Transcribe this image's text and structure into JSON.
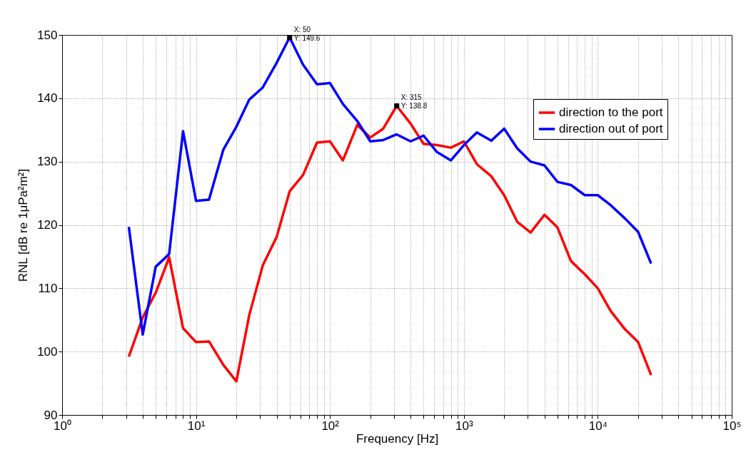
{
  "chart_data": {
    "type": "line",
    "xlabel": "Frequency [Hz]",
    "ylabel": "RNL [dB re 1μPa²m²]",
    "x": [
      3.15,
      4,
      5,
      6.3,
      8,
      10,
      12.5,
      16,
      20,
      25,
      31.5,
      40,
      50,
      63,
      80,
      100,
      125,
      160,
      200,
      250,
      315,
      400,
      500,
      630,
      800,
      1000,
      1250,
      1600,
      2000,
      2500,
      3150,
      4000,
      5000,
      6300,
      8000,
      10000,
      12500,
      16000,
      20000,
      25000
    ],
    "series": [
      {
        "name": "direction to the port",
        "color": "#ff0000",
        "values": [
          99.2,
          105.4,
          109.3,
          114.9,
          103.7,
          101.5,
          101.6,
          97.9,
          95.3,
          105.8,
          113.6,
          118.1,
          125.3,
          127.9,
          133.0,
          133.2,
          130.2,
          135.8,
          133.8,
          135.2,
          138.8,
          136.0,
          132.8,
          132.6,
          132.2,
          133.2,
          129.6,
          127.7,
          124.7,
          120.5,
          118.8,
          121.6,
          119.6,
          114.3,
          112.2,
          110.0,
          106.4,
          103.5,
          101.5,
          96.3
        ]
      },
      {
        "name": "direction out of port",
        "color": "#0000ff",
        "values": [
          119.7,
          102.7,
          113.4,
          115.4,
          134.8,
          123.8,
          124.0,
          131.9,
          135.5,
          139.8,
          141.7,
          145.6,
          149.6,
          145.3,
          142.2,
          142.4,
          139.1,
          136.4,
          133.2,
          133.4,
          134.3,
          133.2,
          134.1,
          131.5,
          130.2,
          132.6,
          134.6,
          133.3,
          135.2,
          132.1,
          130.0,
          129.4,
          126.8,
          126.3,
          124.7,
          124.7,
          123.1,
          121.0,
          118.9,
          113.9
        ]
      }
    ],
    "log": "x",
    "xlim": [
      1,
      100000
    ],
    "xticks": [
      {
        "value": 1,
        "label": "10⁰"
      },
      {
        "value": 2,
        "label": null
      },
      {
        "value": 3,
        "label": null
      },
      {
        "value": 4,
        "label": null
      },
      {
        "value": 5,
        "label": null
      },
      {
        "value": 6,
        "label": null
      },
      {
        "value": 7,
        "label": null
      },
      {
        "value": 8,
        "label": null
      },
      {
        "value": 9,
        "label": null
      },
      {
        "value": 10,
        "label": "10¹"
      },
      {
        "value": 20,
        "label": null
      },
      {
        "value": 30,
        "label": null
      },
      {
        "value": 40,
        "label": null
      },
      {
        "value": 50,
        "label": null
      },
      {
        "value": 60,
        "label": null
      },
      {
        "value": 70,
        "label": null
      },
      {
        "value": 80,
        "label": null
      },
      {
        "value": 90,
        "label": null
      },
      {
        "value": 100,
        "label": "10²"
      },
      {
        "value": 200,
        "label": null
      },
      {
        "value": 300,
        "label": null
      },
      {
        "value": 400,
        "label": null
      },
      {
        "value": 500,
        "label": null
      },
      {
        "value": 600,
        "label": null
      },
      {
        "value": 700,
        "label": null
      },
      {
        "value": 800,
        "label": null
      },
      {
        "value": 900,
        "label": null
      },
      {
        "value": 1000,
        "label": "10³"
      },
      {
        "value": 2000,
        "label": null
      },
      {
        "value": 3000,
        "label": null
      },
      {
        "value": 4000,
        "label": null
      },
      {
        "value": 5000,
        "label": null
      },
      {
        "value": 6000,
        "label": null
      },
      {
        "value": 7000,
        "label": null
      },
      {
        "value": 8000,
        "label": null
      },
      {
        "value": 9000,
        "label": null
      },
      {
        "value": 10000,
        "label": "10⁴"
      },
      {
        "value": 20000,
        "label": null
      },
      {
        "value": 30000,
        "label": null
      },
      {
        "value": 40000,
        "label": null
      },
      {
        "value": 50000,
        "label": null
      },
      {
        "value": 60000,
        "label": null
      },
      {
        "value": 70000,
        "label": null
      },
      {
        "value": 80000,
        "label": null
      },
      {
        "value": 90000,
        "label": null
      },
      {
        "value": 100000,
        "label": "10⁵"
      }
    ],
    "ylim": [
      90,
      150
    ],
    "yticks": [
      90,
      100,
      110,
      120,
      130,
      140,
      150
    ],
    "grid": true,
    "legend": "top right",
    "marker": "none",
    "line_style": "solid",
    "annotations": [
      {
        "text": "X: 50\nY: 149.6",
        "x": 50,
        "y": 149.6
      },
      {
        "text": "X: 315\nY: 138.8",
        "x": 315,
        "y": 138.8
      }
    ]
  }
}
